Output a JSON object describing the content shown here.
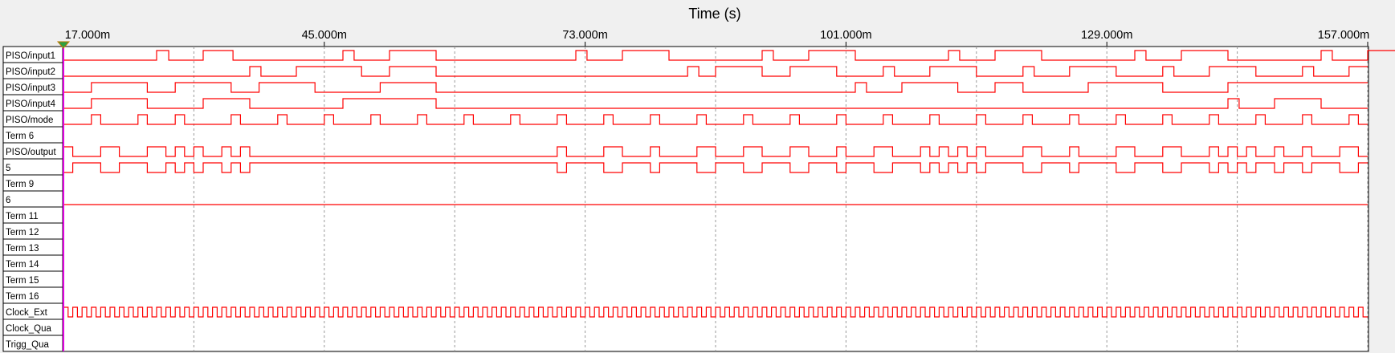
{
  "axis": {
    "title": "Time (s)",
    "ticks": [
      "17.000m",
      "45.000m",
      "73.000m",
      "101.000m",
      "129.000m",
      "157.000m"
    ],
    "range_ms": [
      17,
      157
    ]
  },
  "colors": {
    "trace": "#ff0000",
    "cursor": "#e000e0",
    "grid": "#9a9a9a",
    "background": "#ffffff"
  },
  "signals": [
    {
      "label": "PISO/input1",
      "segments": [
        [
          0,
          10,
          0
        ],
        [
          10,
          11.3,
          1
        ],
        [
          11.3,
          15,
          0
        ],
        [
          15,
          18.2,
          1
        ],
        [
          18.2,
          30,
          0
        ],
        [
          30,
          31.2,
          1
        ],
        [
          31.2,
          35,
          0
        ],
        [
          35,
          40,
          1
        ],
        [
          40,
          55,
          0
        ],
        [
          55,
          56.2,
          1
        ],
        [
          56.2,
          60,
          0
        ],
        [
          60,
          65,
          1
        ],
        [
          65,
          75,
          0
        ],
        [
          75,
          76.2,
          1
        ],
        [
          76.2,
          80,
          0
        ],
        [
          80,
          85,
          1
        ],
        [
          85,
          95,
          0
        ],
        [
          95,
          96.2,
          1
        ],
        [
          96.2,
          100,
          0
        ],
        [
          100,
          105,
          1
        ],
        [
          105,
          115,
          0
        ],
        [
          115,
          116.2,
          1
        ],
        [
          116.2,
          120,
          0
        ],
        [
          120,
          125,
          1
        ],
        [
          125,
          135,
          0
        ],
        [
          135,
          136.2,
          1
        ],
        [
          136.2,
          140,
          0
        ],
        [
          140,
          145,
          1
        ]
      ]
    },
    {
      "label": "PISO/input2",
      "segments": [
        [
          0,
          20,
          0
        ],
        [
          20,
          21.2,
          1
        ],
        [
          21.2,
          25,
          0
        ],
        [
          25,
          32,
          1
        ],
        [
          32,
          35,
          0
        ],
        [
          35,
          40,
          1
        ],
        [
          40,
          67,
          0
        ],
        [
          67,
          68.2,
          1
        ],
        [
          68.2,
          70,
          0
        ],
        [
          70,
          75,
          1
        ],
        [
          75,
          78,
          0
        ],
        [
          78,
          83,
          1
        ],
        [
          83,
          88,
          0
        ],
        [
          88,
          89.2,
          1
        ],
        [
          89.2,
          93,
          0
        ],
        [
          93,
          98,
          1
        ],
        [
          98,
          103,
          0
        ],
        [
          103,
          104.2,
          1
        ],
        [
          104.2,
          108,
          0
        ],
        [
          108,
          113,
          1
        ],
        [
          113,
          118,
          0
        ],
        [
          118,
          119.2,
          1
        ],
        [
          119.2,
          123,
          0
        ],
        [
          123,
          128,
          1
        ],
        [
          128,
          133,
          0
        ],
        [
          133,
          134.2,
          1
        ],
        [
          134.2,
          138,
          0
        ],
        [
          138,
          140,
          1
        ]
      ]
    },
    {
      "label": "PISO/input3",
      "segments": [
        [
          0,
          3,
          0
        ],
        [
          3,
          9,
          1
        ],
        [
          9,
          12,
          0
        ],
        [
          12,
          18,
          1
        ],
        [
          18,
          21,
          0
        ],
        [
          21,
          27,
          1
        ],
        [
          27,
          34,
          0
        ],
        [
          34,
          40,
          1
        ],
        [
          40,
          85,
          0
        ],
        [
          85,
          86.2,
          1
        ],
        [
          86.2,
          90,
          0
        ],
        [
          90,
          96,
          1
        ],
        [
          96,
          100,
          0
        ],
        [
          100,
          103,
          1
        ],
        [
          103,
          110,
          0
        ],
        [
          110,
          118,
          1
        ],
        [
          118,
          125,
          0
        ],
        [
          125,
          140,
          1
        ]
      ]
    },
    {
      "label": "PISO/input4",
      "segments": [
        [
          0,
          3,
          0
        ],
        [
          3,
          9,
          1
        ],
        [
          9,
          15,
          0
        ],
        [
          15,
          20,
          1
        ],
        [
          20,
          30,
          0
        ],
        [
          30,
          40,
          1
        ],
        [
          40,
          125,
          0
        ],
        [
          125,
          126.2,
          1
        ],
        [
          126.2,
          130,
          0
        ],
        [
          130,
          135,
          1
        ],
        [
          135,
          140,
          0
        ]
      ]
    },
    {
      "label": "PISO/mode",
      "segments": [
        [
          0,
          3,
          0
        ],
        [
          3,
          4,
          1
        ],
        [
          4,
          8,
          0
        ],
        [
          8,
          9,
          1
        ],
        [
          9,
          12,
          0
        ],
        [
          12,
          13,
          1
        ],
        [
          13,
          18,
          0
        ],
        [
          18,
          19,
          1
        ],
        [
          19,
          23,
          0
        ],
        [
          23,
          24,
          1
        ],
        [
          24,
          28,
          0
        ],
        [
          28,
          29,
          1
        ],
        [
          29,
          33,
          0
        ],
        [
          33,
          34,
          1
        ],
        [
          34,
          38,
          0
        ],
        [
          38,
          39,
          1
        ],
        [
          39,
          43,
          0
        ],
        [
          43,
          44,
          1
        ],
        [
          44,
          48,
          0
        ],
        [
          48,
          49,
          1
        ],
        [
          49,
          53,
          0
        ],
        [
          53,
          54,
          1
        ],
        [
          54,
          58,
          0
        ],
        [
          58,
          59,
          1
        ],
        [
          59,
          63,
          0
        ],
        [
          63,
          64,
          1
        ],
        [
          64,
          68,
          0
        ],
        [
          68,
          69,
          1
        ],
        [
          69,
          73,
          0
        ],
        [
          73,
          74,
          1
        ],
        [
          74,
          78,
          0
        ],
        [
          78,
          79,
          1
        ],
        [
          79,
          83,
          0
        ],
        [
          83,
          84,
          1
        ],
        [
          84,
          88,
          0
        ],
        [
          88,
          89,
          1
        ],
        [
          89,
          93,
          0
        ],
        [
          93,
          94,
          1
        ],
        [
          94,
          98,
          0
        ],
        [
          98,
          99,
          1
        ],
        [
          99,
          103,
          0
        ],
        [
          103,
          104,
          1
        ],
        [
          104,
          108,
          0
        ],
        [
          108,
          109,
          1
        ],
        [
          109,
          113,
          0
        ],
        [
          113,
          114,
          1
        ],
        [
          114,
          118,
          0
        ],
        [
          118,
          119,
          1
        ],
        [
          119,
          123,
          0
        ],
        [
          123,
          124,
          1
        ],
        [
          124,
          128,
          0
        ],
        [
          128,
          129,
          1
        ],
        [
          129,
          133,
          0
        ],
        [
          133,
          134,
          1
        ],
        [
          134,
          138,
          0
        ],
        [
          138,
          139,
          1
        ],
        [
          139,
          140,
          0
        ]
      ]
    },
    {
      "label": "Term 6",
      "segments": []
    },
    {
      "label": "PISO/output",
      "segments": [
        [
          0,
          1,
          1
        ],
        [
          1,
          4,
          0
        ],
        [
          4,
          6,
          1
        ],
        [
          6,
          9,
          0
        ],
        [
          9,
          11,
          1
        ],
        [
          11,
          12,
          0
        ],
        [
          12,
          13,
          1
        ],
        [
          13,
          14,
          0
        ],
        [
          14,
          15,
          1
        ],
        [
          15,
          17,
          0
        ],
        [
          17,
          18,
          1
        ],
        [
          18,
          19,
          0
        ],
        [
          19,
          20,
          1
        ],
        [
          20,
          53,
          0
        ],
        [
          53,
          54,
          1
        ],
        [
          54,
          58,
          0
        ],
        [
          58,
          60,
          1
        ],
        [
          60,
          63,
          0
        ],
        [
          63,
          64,
          1
        ],
        [
          64,
          68,
          0
        ],
        [
          68,
          70,
          1
        ],
        [
          70,
          73,
          0
        ],
        [
          73,
          75,
          1
        ],
        [
          75,
          78,
          0
        ],
        [
          78,
          80,
          1
        ],
        [
          80,
          83,
          0
        ],
        [
          83,
          84,
          1
        ],
        [
          84,
          87,
          0
        ],
        [
          87,
          89,
          1
        ],
        [
          89,
          92,
          0
        ],
        [
          92,
          93,
          1
        ],
        [
          93,
          94,
          0
        ],
        [
          94,
          95,
          1
        ],
        [
          95,
          96,
          0
        ],
        [
          96,
          97,
          1
        ],
        [
          97,
          98,
          0
        ],
        [
          98,
          99,
          1
        ],
        [
          99,
          103,
          0
        ],
        [
          103,
          105,
          1
        ],
        [
          105,
          108,
          0
        ],
        [
          108,
          109,
          1
        ],
        [
          109,
          113,
          0
        ],
        [
          113,
          115,
          1
        ],
        [
          115,
          118,
          0
        ],
        [
          118,
          120,
          1
        ],
        [
          120,
          123,
          0
        ],
        [
          123,
          124,
          1
        ],
        [
          124,
          125,
          0
        ],
        [
          125,
          126,
          1
        ],
        [
          126,
          127,
          0
        ],
        [
          127,
          128,
          1
        ],
        [
          128,
          130,
          0
        ],
        [
          130,
          131,
          1
        ],
        [
          131,
          133,
          0
        ],
        [
          133,
          134,
          1
        ],
        [
          134,
          137,
          0
        ],
        [
          137,
          139,
          1
        ],
        [
          139,
          140,
          0
        ]
      ]
    },
    {
      "label": "5",
      "segments": [
        [
          0,
          1,
          0
        ],
        [
          1,
          4,
          1
        ],
        [
          4,
          6,
          0
        ],
        [
          6,
          9,
          1
        ],
        [
          9,
          11,
          0
        ],
        [
          11,
          12,
          1
        ],
        [
          12,
          13,
          0
        ],
        [
          13,
          14,
          1
        ],
        [
          14,
          15,
          0
        ],
        [
          15,
          17,
          1
        ],
        [
          17,
          18,
          0
        ],
        [
          18,
          19,
          1
        ],
        [
          19,
          20,
          0
        ],
        [
          20,
          53,
          1
        ],
        [
          53,
          54,
          0
        ],
        [
          54,
          58,
          1
        ],
        [
          58,
          60,
          0
        ],
        [
          60,
          63,
          1
        ],
        [
          63,
          64,
          0
        ],
        [
          64,
          68,
          1
        ],
        [
          68,
          70,
          0
        ],
        [
          70,
          73,
          1
        ],
        [
          73,
          75,
          0
        ],
        [
          75,
          78,
          1
        ],
        [
          78,
          80,
          0
        ],
        [
          80,
          83,
          1
        ],
        [
          83,
          84,
          0
        ],
        [
          84,
          87,
          1
        ],
        [
          87,
          89,
          0
        ],
        [
          89,
          92,
          1
        ],
        [
          92,
          93,
          0
        ],
        [
          93,
          94,
          1
        ],
        [
          94,
          95,
          0
        ],
        [
          95,
          96,
          1
        ],
        [
          96,
          97,
          0
        ],
        [
          97,
          98,
          1
        ],
        [
          98,
          99,
          0
        ],
        [
          99,
          103,
          1
        ],
        [
          103,
          105,
          0
        ],
        [
          105,
          108,
          1
        ],
        [
          108,
          109,
          0
        ],
        [
          109,
          113,
          1
        ],
        [
          113,
          115,
          0
        ],
        [
          115,
          118,
          1
        ],
        [
          118,
          120,
          0
        ],
        [
          120,
          123,
          1
        ],
        [
          123,
          124,
          0
        ],
        [
          124,
          125,
          1
        ],
        [
          125,
          126,
          0
        ],
        [
          126,
          127,
          1
        ],
        [
          127,
          128,
          0
        ],
        [
          128,
          130,
          1
        ],
        [
          130,
          131,
          0
        ],
        [
          131,
          133,
          1
        ],
        [
          133,
          134,
          0
        ],
        [
          134,
          137,
          1
        ],
        [
          137,
          139,
          0
        ],
        [
          139,
          140,
          1
        ]
      ]
    },
    {
      "label": "Term 9",
      "segments": []
    },
    {
      "label": "6",
      "segments": [
        [
          0,
          140,
          0
        ]
      ]
    },
    {
      "label": "Term 11",
      "segments": []
    },
    {
      "label": "Term 12",
      "segments": []
    },
    {
      "label": "Term 13",
      "segments": []
    },
    {
      "label": "Term 14",
      "segments": []
    },
    {
      "label": "Term 15",
      "segments": []
    },
    {
      "label": "Term 16",
      "segments": []
    },
    {
      "label": "Clock_Ext",
      "clock": {
        "period_ms": 1.0,
        "duty": 0.5
      }
    },
    {
      "label": "Clock_Qua",
      "segments": []
    },
    {
      "label": "Trigg_Qua",
      "segments": []
    }
  ]
}
